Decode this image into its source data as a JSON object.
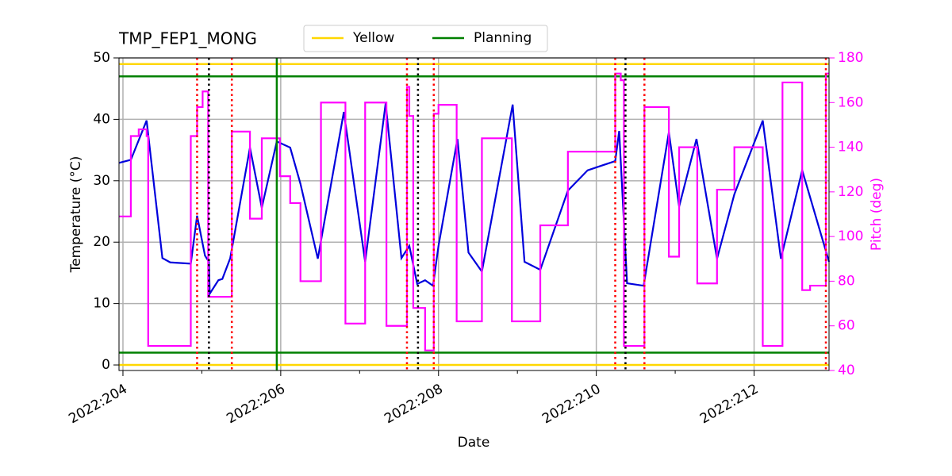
{
  "chart_data": {
    "type": "line",
    "title": "TMP_FEP1_MONG",
    "xlabel": "Date",
    "ylabel": "Temperature (°C)",
    "y2label": "Pitch (deg)",
    "y2color": "#ff00ff",
    "xlim": [
      203.95,
      212.95
    ],
    "xticks": [
      {
        "value": 204,
        "label": "2022:204"
      },
      {
        "value": 206,
        "label": "2022:206"
      },
      {
        "value": 208,
        "label": "2022:208"
      },
      {
        "value": 210,
        "label": "2022:210"
      },
      {
        "value": 212,
        "label": "2022:212"
      }
    ],
    "xminorticks": [
      205,
      207,
      209,
      211
    ],
    "ylim": [
      -0.9,
      50
    ],
    "yticks": [
      0,
      10,
      20,
      30,
      40,
      50
    ],
    "y2lim": [
      40,
      180
    ],
    "y2ticks": [
      40,
      60,
      80,
      100,
      120,
      140,
      160,
      180
    ],
    "grid": true,
    "legend": "top",
    "limits": [
      {
        "name": "Yellow",
        "color": "#ffd700",
        "values": [
          0,
          49
        ]
      },
      {
        "name": "Planning",
        "color": "#008000",
        "values": [
          2,
          47
        ]
      }
    ],
    "vlines": [
      {
        "color": "#ff0000",
        "style": "dotted",
        "x": [
          204.94,
          205.38,
          207.6,
          207.94,
          210.24,
          210.61,
          212.91
        ]
      },
      {
        "color": "#000000",
        "style": "dotted",
        "x": [
          205.09,
          207.74,
          210.37
        ]
      },
      {
        "color": "#008000",
        "style": "solid",
        "x": [
          205.95
        ]
      }
    ],
    "series": [
      {
        "color": "#0000dd",
        "axis": "y",
        "step": false,
        "x": [
          203.95,
          204.1,
          204.3,
          204.5,
          204.6,
          204.86,
          204.94,
          205.04,
          205.09,
          205.1,
          205.21,
          205.26,
          205.36,
          205.61,
          205.76,
          205.95,
          206.12,
          206.25,
          206.47,
          206.8,
          207.07,
          207.33,
          207.53,
          207.63,
          207.73,
          207.83,
          207.93,
          208.0,
          208.24,
          208.38,
          208.55,
          208.94,
          209.09,
          209.29,
          209.64,
          209.89,
          210.24,
          210.29,
          210.39,
          210.6,
          210.92,
          211.05,
          211.27,
          211.53,
          211.75,
          212.11,
          212.34,
          212.61,
          212.95
        ],
        "values": [
          32.9,
          33.4,
          39.8,
          17.4,
          16.7,
          16.5,
          24.3,
          17.8,
          16.8,
          11.6,
          13.8,
          14.0,
          17.4,
          35.4,
          25.6,
          36.4,
          35.4,
          29.5,
          17.3,
          41.2,
          16.8,
          42.6,
          17.4,
          19.4,
          13.2,
          13.8,
          12.9,
          19.4,
          36.8,
          18.3,
          15.2,
          42.4,
          16.8,
          15.5,
          28.4,
          31.7,
          33.2,
          38.1,
          13.3,
          12.9,
          37.9,
          25.8,
          36.8,
          17.3,
          27.8,
          39.8,
          17.3,
          31.7,
          16.8
        ]
      },
      {
        "color": "#ff00ff",
        "axis": "y2",
        "step": true,
        "x": [
          203.95,
          204.1,
          204.2,
          204.3,
          204.32,
          204.86,
          204.94,
          205.01,
          205.08,
          205.38,
          205.61,
          205.76,
          205.99,
          206.12,
          206.25,
          206.51,
          206.82,
          207.07,
          207.34,
          207.6,
          207.63,
          207.68,
          207.83,
          207.94,
          208.0,
          208.23,
          208.55,
          208.93,
          209.29,
          209.64,
          210.24,
          210.31,
          210.35,
          210.61,
          210.92,
          211.05,
          211.28,
          211.53,
          211.75,
          212.11,
          212.36,
          212.61,
          212.71,
          212.91,
          212.95
        ],
        "values": [
          109,
          145,
          148,
          145,
          51,
          145,
          158,
          165,
          73,
          147,
          108,
          144,
          127,
          115,
          80,
          160,
          61,
          160,
          60,
          167,
          154,
          68,
          49,
          155,
          159,
          62,
          144,
          62,
          105,
          138,
          173,
          170,
          51,
          158,
          91,
          140,
          79,
          121,
          140,
          51,
          169,
          76,
          78,
          173,
          173
        ]
      }
    ]
  }
}
